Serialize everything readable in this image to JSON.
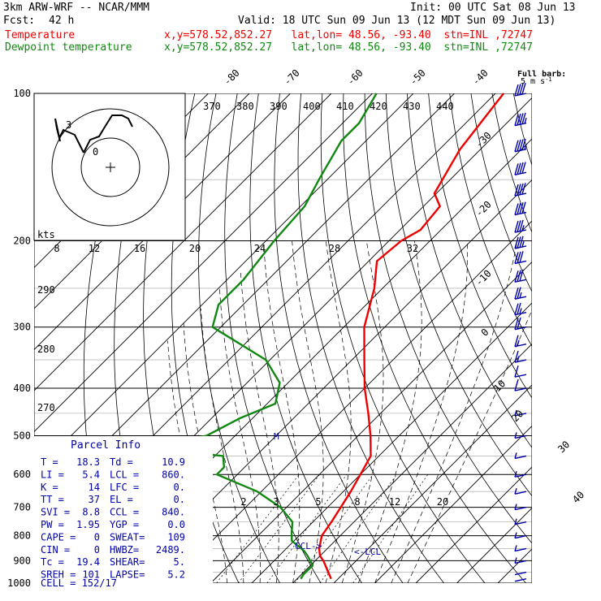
{
  "header": {
    "model": "3km ARW-WRF -- NCAR/MMM",
    "init": "Init: 00 UTC Sat 08 Jun 13",
    "fcst_label": "Fcst:",
    "fcst_value": "42 h",
    "valid": "Valid: 18 UTC Sun 09 Jun 13 (12 MDT Sun 09 Jun 13)",
    "temp_label": "Temperature",
    "temp_info": "x,y=578.52,852.27   lat,lon= 48.56, -93.40  stn=INL ,72747",
    "dew_label": "Dewpoint temperature",
    "dew_info": "x,y=578.52,852.27   lat,lon= 48.56, -93.40  stn=INL ,72747"
  },
  "colors": {
    "temperature": "#ee0000",
    "dewpoint": "#118811",
    "parcel_text": "#0000aa",
    "grid": "#000000"
  },
  "barb_legend": {
    "line1": "Full barb:",
    "line2": "5 m s",
    "exp": "-1"
  },
  "hodograph": {
    "kts_label": "kts",
    "speed_ticks": [
      "8",
      "12",
      "16",
      "20",
      "24",
      "28",
      "32"
    ],
    "marker_3": "3",
    "marker_0": "0"
  },
  "parcel_info": {
    "title": "Parcel Info",
    "rows": [
      [
        "T  =",
        "18.3",
        "Td =",
        "10.9"
      ],
      [
        "LI =",
        "5.4",
        "LCL =",
        "860."
      ],
      [
        "K  =",
        "14",
        "LFC =",
        "0."
      ],
      [
        "TT =",
        "37",
        "EL =",
        "0."
      ],
      [
        "SVI =",
        "8.8",
        "CCL =",
        "840."
      ],
      [
        "PW =",
        "1.95",
        "YGP =",
        "0.0"
      ],
      [
        "CAPE =",
        "0",
        "SWEAT=",
        "109"
      ],
      [
        "CIN =",
        "0",
        "HWBZ=",
        "2489."
      ],
      [
        "Tc =",
        "19.4",
        "SHEAR=",
        "5."
      ],
      [
        "SREH =",
        "101",
        "LAPSE=",
        "5.2"
      ]
    ],
    "cell": "CELL = 152/17"
  },
  "labels": {
    "ccl": "CCL->",
    "lcl": "<-LCL",
    "melt_marker": "M"
  },
  "chart_data": {
    "type": "line",
    "title": "",
    "pressure_levels": [
      100,
      200,
      300,
      400,
      500,
      600,
      700,
      800,
      900,
      1000
    ],
    "isotherm_labels": [
      "-80",
      "-70",
      "-60",
      "-50",
      "-40",
      "-30",
      "-20",
      "-10",
      "0",
      "10",
      "20",
      "30",
      "40"
    ],
    "theta_labels": [
      "370",
      "380",
      "390",
      "400",
      "410",
      "420",
      "430",
      "440"
    ],
    "mixing_ratio_labels": [
      "2",
      "3",
      "5",
      "8",
      "12",
      "20"
    ],
    "thetae_labels": [
      "290",
      "280",
      "270"
    ],
    "series": [
      {
        "name": "Temperature",
        "points": [
          [
            100,
            -58
          ],
          [
            130,
            -55
          ],
          [
            160,
            -50.5
          ],
          [
            170,
            -46
          ],
          [
            190,
            -45
          ],
          [
            200,
            -47
          ],
          [
            220,
            -48
          ],
          [
            250,
            -42
          ],
          [
            300,
            -35
          ],
          [
            350,
            -27
          ],
          [
            400,
            -20
          ],
          [
            450,
            -13
          ],
          [
            500,
            -7
          ],
          [
            550,
            -2
          ],
          [
            600,
            0
          ],
          [
            650,
            1.8
          ],
          [
            700,
            3.2
          ],
          [
            750,
            4.5
          ],
          [
            800,
            5.5
          ],
          [
            850,
            8
          ],
          [
            880,
            10
          ],
          [
            900,
            12
          ],
          [
            950,
            16
          ],
          [
            980,
            18.3
          ]
        ]
      },
      {
        "name": "Dewpoint temperature",
        "points": [
          [
            100,
            -89
          ],
          [
            115,
            -86
          ],
          [
            125,
            -86
          ],
          [
            150,
            -82
          ],
          [
            170,
            -79
          ],
          [
            200,
            -78
          ],
          [
            240,
            -76
          ],
          [
            270,
            -76
          ],
          [
            300,
            -72
          ],
          [
            350,
            -51
          ],
          [
            390,
            -42
          ],
          [
            430,
            -38
          ],
          [
            460,
            -43
          ],
          [
            500,
            -47
          ],
          [
            530,
            -59
          ],
          [
            550,
            -38
          ],
          [
            580,
            -35
          ],
          [
            600,
            -35
          ],
          [
            650,
            -21
          ],
          [
            700,
            -11.5
          ],
          [
            750,
            -5
          ],
          [
            790,
            -2.5
          ],
          [
            820,
            -0.5
          ],
          [
            860,
            5
          ],
          [
            880,
            7
          ],
          [
            920,
            10.5
          ],
          [
            960,
            10.5
          ],
          [
            980,
            10.9
          ]
        ]
      }
    ],
    "wind_barbs": [
      {
        "p": 100,
        "ws": 44
      },
      {
        "p": 115,
        "ws": 45
      },
      {
        "p": 130,
        "ws": 45
      },
      {
        "p": 145,
        "ws": 43
      },
      {
        "p": 160,
        "ws": 42
      },
      {
        "p": 175,
        "ws": 40
      },
      {
        "p": 190,
        "ws": 38
      },
      {
        "p": 205,
        "ws": 36
      },
      {
        "p": 220,
        "ws": 34
      },
      {
        "p": 240,
        "ws": 31
      },
      {
        "p": 260,
        "ws": 28
      },
      {
        "p": 280,
        "ws": 25
      },
      {
        "p": 300,
        "ws": 22
      },
      {
        "p": 325,
        "ws": 18
      },
      {
        "p": 350,
        "ws": 15
      },
      {
        "p": 375,
        "ws": 12
      },
      {
        "p": 400,
        "ws": 10
      },
      {
        "p": 450,
        "ws": 8
      },
      {
        "p": 500,
        "ws": 6
      },
      {
        "p": 550,
        "ws": 5
      },
      {
        "p": 600,
        "ws": 5
      },
      {
        "p": 650,
        "ws": 6
      },
      {
        "p": 700,
        "ws": 6
      },
      {
        "p": 750,
        "ws": 5
      },
      {
        "p": 800,
        "ws": 5
      },
      {
        "p": 850,
        "ws": 6
      },
      {
        "p": 900,
        "ws": 5
      },
      {
        "p": 950,
        "ws": 4
      },
      {
        "p": 980,
        "ws": 3
      }
    ]
  }
}
